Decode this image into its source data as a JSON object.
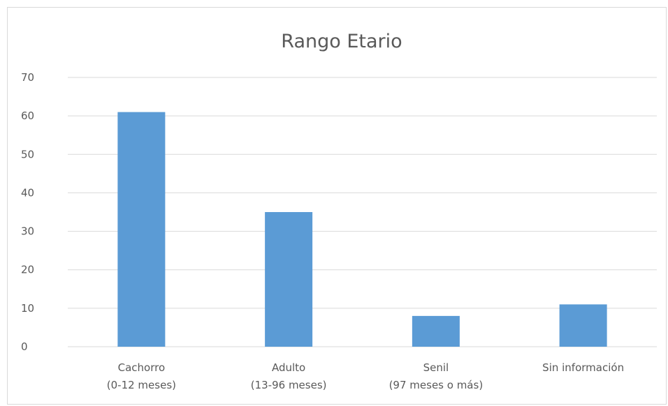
{
  "chart_data": {
    "type": "bar",
    "title": "Rango Etario",
    "categories": [
      [
        "Cachorro",
        "(0-12 meses)"
      ],
      [
        "Adulto",
        "(13-96 meses)"
      ],
      [
        "Senil",
        "(97 meses o más)"
      ],
      [
        "Sin información"
      ]
    ],
    "values": [
      61,
      35,
      8,
      11
    ],
    "ylim": [
      0,
      70
    ],
    "yticks": [
      0,
      10,
      20,
      30,
      40,
      50,
      60,
      70
    ],
    "grid": true,
    "legend": "none",
    "bar_color": "#5b9bd5",
    "grid_color": "#d9d9d9",
    "text_color": "#595959"
  }
}
